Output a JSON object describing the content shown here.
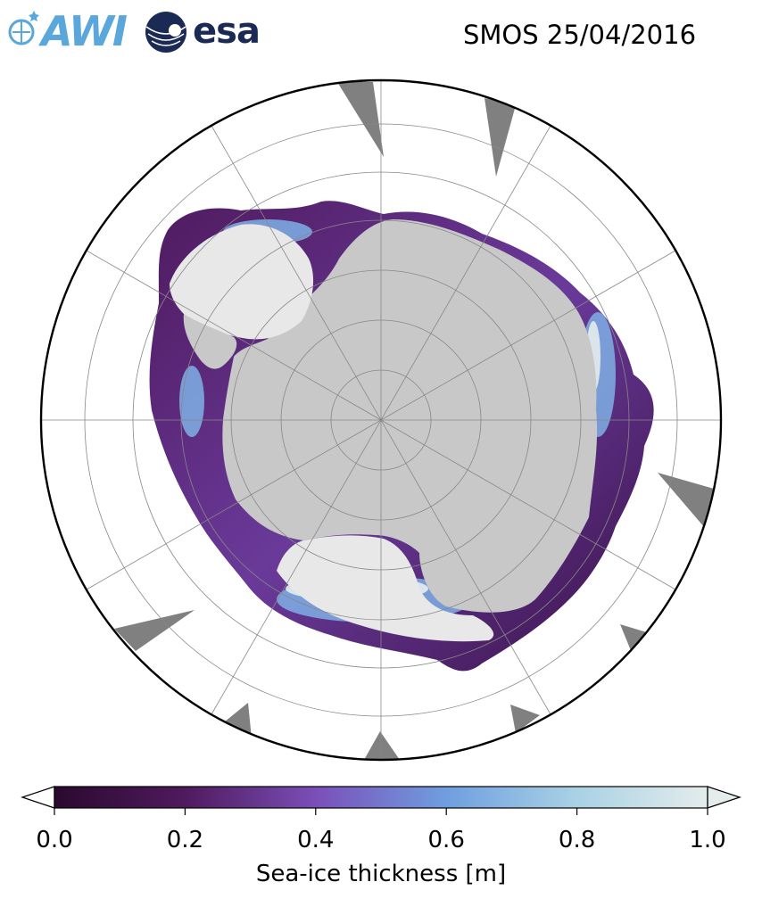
{
  "header": {
    "title": "SMOS 25/04/2016",
    "logo_awi": "AWI",
    "logo_esa": "esa"
  },
  "map": {
    "projection": "south-polar-stereographic",
    "region": "Antarctica",
    "colors": {
      "land": "#c8c8c8",
      "ice_shelf": "#e8e8e8",
      "ocean": "#ffffff",
      "no_data": "#808080",
      "graticule": "#888888",
      "boundary": "#000000"
    }
  },
  "colorbar": {
    "label": "Sea-ice thickness [m]",
    "ticks": [
      "0.0",
      "0.2",
      "0.4",
      "0.6",
      "0.8",
      "1.0"
    ],
    "min": 0.0,
    "max": 1.0,
    "extend": "both",
    "stops": [
      "#2a0a2e",
      "#4f1a5e",
      "#7a4fb8",
      "#6f9ee0",
      "#a9d2e4",
      "#e4ecec"
    ]
  }
}
